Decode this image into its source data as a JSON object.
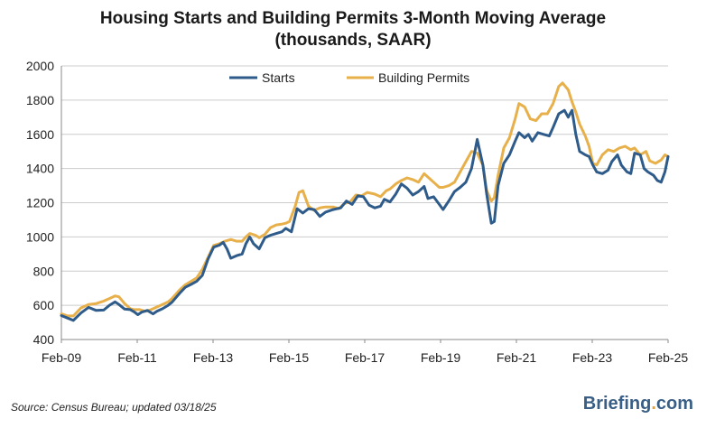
{
  "title_line1": "Housing Starts and Building Permits 3-Month Moving Average",
  "title_line2": "(thousands, SAAR)",
  "source": "Source:  Census Bureau;  updated  03/18/25",
  "logo": {
    "name": "Briefing",
    "dot": ".",
    "tld": "com"
  },
  "colors": {
    "starts": "#2e5b8a",
    "permits": "#e8b04a",
    "grid": "#cccccc"
  },
  "chart_data": {
    "type": "line",
    "title": "Housing Starts and Building Permits 3-Month Moving Average (thousands, SAAR)",
    "xlabel": "",
    "ylabel": "",
    "xlim": [
      2009.083,
      2025.083
    ],
    "ylim": [
      400,
      2000
    ],
    "yticks": [
      400,
      600,
      800,
      1000,
      1200,
      1400,
      1600,
      1800,
      2000
    ],
    "xticks": [
      {
        "value": 2009.083,
        "label": "Feb-09"
      },
      {
        "value": 2011.083,
        "label": "Feb-11"
      },
      {
        "value": 2013.083,
        "label": "Feb-13"
      },
      {
        "value": 2015.083,
        "label": "Feb-15"
      },
      {
        "value": 2017.083,
        "label": "Feb-17"
      },
      {
        "value": 2019.083,
        "label": "Feb-19"
      },
      {
        "value": 2021.083,
        "label": "Feb-21"
      },
      {
        "value": 2023.083,
        "label": "Feb-23"
      },
      {
        "value": 2025.083,
        "label": "Feb-25"
      }
    ],
    "grid": true,
    "legend": "top-center",
    "series": [
      {
        "name": "Starts",
        "color": "#2e5b8a",
        "points": [
          [
            2009.083,
            540
          ],
          [
            2009.25,
            525
          ],
          [
            2009.4,
            512
          ],
          [
            2009.6,
            555
          ],
          [
            2009.8,
            588
          ],
          [
            2010.0,
            570
          ],
          [
            2010.2,
            572
          ],
          [
            2010.35,
            600
          ],
          [
            2010.5,
            620
          ],
          [
            2010.6,
            605
          ],
          [
            2010.75,
            578
          ],
          [
            2010.9,
            575
          ],
          [
            2011.0,
            562
          ],
          [
            2011.1,
            545
          ],
          [
            2011.2,
            560
          ],
          [
            2011.35,
            570
          ],
          [
            2011.5,
            550
          ],
          [
            2011.6,
            565
          ],
          [
            2011.75,
            580
          ],
          [
            2011.9,
            600
          ],
          [
            2012.0,
            618
          ],
          [
            2012.2,
            670
          ],
          [
            2012.35,
            705
          ],
          [
            2012.5,
            722
          ],
          [
            2012.65,
            740
          ],
          [
            2012.8,
            775
          ],
          [
            2012.95,
            870
          ],
          [
            2013.1,
            940
          ],
          [
            2013.25,
            952
          ],
          [
            2013.35,
            968
          ],
          [
            2013.45,
            930
          ],
          [
            2013.55,
            875
          ],
          [
            2013.7,
            890
          ],
          [
            2013.85,
            900
          ],
          [
            2013.95,
            960
          ],
          [
            2014.05,
            1000
          ],
          [
            2014.15,
            960
          ],
          [
            2014.3,
            930
          ],
          [
            2014.45,
            995
          ],
          [
            2014.6,
            1010
          ],
          [
            2014.75,
            1020
          ],
          [
            2014.9,
            1030
          ],
          [
            2015.0,
            1050
          ],
          [
            2015.15,
            1030
          ],
          [
            2015.3,
            1165
          ],
          [
            2015.45,
            1140
          ],
          [
            2015.6,
            1165
          ],
          [
            2015.75,
            1160
          ],
          [
            2015.9,
            1120
          ],
          [
            2016.05,
            1145
          ],
          [
            2016.25,
            1160
          ],
          [
            2016.45,
            1170
          ],
          [
            2016.6,
            1210
          ],
          [
            2016.75,
            1190
          ],
          [
            2016.9,
            1240
          ],
          [
            2017.05,
            1235
          ],
          [
            2017.2,
            1185
          ],
          [
            2017.35,
            1170
          ],
          [
            2017.5,
            1180
          ],
          [
            2017.6,
            1220
          ],
          [
            2017.75,
            1205
          ],
          [
            2017.9,
            1250
          ],
          [
            2018.05,
            1310
          ],
          [
            2018.2,
            1285
          ],
          [
            2018.35,
            1245
          ],
          [
            2018.5,
            1265
          ],
          [
            2018.65,
            1295
          ],
          [
            2018.75,
            1225
          ],
          [
            2018.9,
            1235
          ],
          [
            2019.05,
            1190
          ],
          [
            2019.15,
            1160
          ],
          [
            2019.3,
            1210
          ],
          [
            2019.45,
            1265
          ],
          [
            2019.6,
            1290
          ],
          [
            2019.75,
            1320
          ],
          [
            2019.9,
            1400
          ],
          [
            2020.05,
            1570
          ],
          [
            2020.2,
            1420
          ],
          [
            2020.3,
            1250
          ],
          [
            2020.42,
            1080
          ],
          [
            2020.5,
            1090
          ],
          [
            2020.6,
            1300
          ],
          [
            2020.75,
            1430
          ],
          [
            2020.9,
            1480
          ],
          [
            2021.05,
            1560
          ],
          [
            2021.15,
            1610
          ],
          [
            2021.3,
            1580
          ],
          [
            2021.4,
            1600
          ],
          [
            2021.5,
            1560
          ],
          [
            2021.65,
            1610
          ],
          [
            2021.8,
            1600
          ],
          [
            2021.95,
            1590
          ],
          [
            2022.05,
            1640
          ],
          [
            2022.2,
            1720
          ],
          [
            2022.35,
            1740
          ],
          [
            2022.45,
            1700
          ],
          [
            2022.55,
            1740
          ],
          [
            2022.65,
            1600
          ],
          [
            2022.75,
            1500
          ],
          [
            2022.9,
            1480
          ],
          [
            2023.0,
            1470
          ],
          [
            2023.1,
            1420
          ],
          [
            2023.2,
            1380
          ],
          [
            2023.35,
            1370
          ],
          [
            2023.5,
            1390
          ],
          [
            2023.6,
            1440
          ],
          [
            2023.75,
            1480
          ],
          [
            2023.85,
            1420
          ],
          [
            2024.0,
            1380
          ],
          [
            2024.1,
            1370
          ],
          [
            2024.2,
            1490
          ],
          [
            2024.35,
            1480
          ],
          [
            2024.45,
            1400
          ],
          [
            2024.55,
            1380
          ],
          [
            2024.7,
            1360
          ],
          [
            2024.8,
            1330
          ],
          [
            2024.9,
            1320
          ],
          [
            2025.0,
            1380
          ],
          [
            2025.083,
            1470
          ]
        ]
      },
      {
        "name": "Building Permits",
        "color": "#e8b04a",
        "points": [
          [
            2009.083,
            550
          ],
          [
            2009.25,
            538
          ],
          [
            2009.4,
            538
          ],
          [
            2009.6,
            585
          ],
          [
            2009.8,
            605
          ],
          [
            2010.0,
            610
          ],
          [
            2010.2,
            625
          ],
          [
            2010.35,
            640
          ],
          [
            2010.5,
            655
          ],
          [
            2010.6,
            650
          ],
          [
            2010.75,
            610
          ],
          [
            2010.9,
            580
          ],
          [
            2011.0,
            575
          ],
          [
            2011.15,
            575
          ],
          [
            2011.3,
            565
          ],
          [
            2011.45,
            575
          ],
          [
            2011.6,
            590
          ],
          [
            2011.75,
            605
          ],
          [
            2011.9,
            620
          ],
          [
            2012.0,
            640
          ],
          [
            2012.2,
            690
          ],
          [
            2012.35,
            720
          ],
          [
            2012.5,
            740
          ],
          [
            2012.65,
            760
          ],
          [
            2012.8,
            810
          ],
          [
            2012.95,
            880
          ],
          [
            2013.1,
            950
          ],
          [
            2013.25,
            960
          ],
          [
            2013.4,
            975
          ],
          [
            2013.55,
            985
          ],
          [
            2013.7,
            975
          ],
          [
            2013.85,
            975
          ],
          [
            2013.95,
            1000
          ],
          [
            2014.05,
            1020
          ],
          [
            2014.2,
            1010
          ],
          [
            2014.3,
            995
          ],
          [
            2014.45,
            1015
          ],
          [
            2014.6,
            1055
          ],
          [
            2014.75,
            1070
          ],
          [
            2014.9,
            1075
          ],
          [
            2015.0,
            1080
          ],
          [
            2015.1,
            1090
          ],
          [
            2015.25,
            1180
          ],
          [
            2015.35,
            1260
          ],
          [
            2015.45,
            1270
          ],
          [
            2015.6,
            1180
          ],
          [
            2015.75,
            1155
          ],
          [
            2015.9,
            1170
          ],
          [
            2016.05,
            1175
          ],
          [
            2016.25,
            1175
          ],
          [
            2016.4,
            1165
          ],
          [
            2016.55,
            1195
          ],
          [
            2016.7,
            1205
          ],
          [
            2016.85,
            1245
          ],
          [
            2017.0,
            1240
          ],
          [
            2017.15,
            1260
          ],
          [
            2017.35,
            1250
          ],
          [
            2017.5,
            1235
          ],
          [
            2017.65,
            1270
          ],
          [
            2017.75,
            1280
          ],
          [
            2017.9,
            1310
          ],
          [
            2018.05,
            1330
          ],
          [
            2018.2,
            1345
          ],
          [
            2018.35,
            1335
          ],
          [
            2018.5,
            1320
          ],
          [
            2018.65,
            1370
          ],
          [
            2018.75,
            1350
          ],
          [
            2018.9,
            1320
          ],
          [
            2019.05,
            1290
          ],
          [
            2019.15,
            1290
          ],
          [
            2019.3,
            1300
          ],
          [
            2019.45,
            1320
          ],
          [
            2019.6,
            1380
          ],
          [
            2019.75,
            1440
          ],
          [
            2019.9,
            1500
          ],
          [
            2020.05,
            1490
          ],
          [
            2020.2,
            1420
          ],
          [
            2020.3,
            1270
          ],
          [
            2020.42,
            1210
          ],
          [
            2020.5,
            1230
          ],
          [
            2020.6,
            1360
          ],
          [
            2020.75,
            1520
          ],
          [
            2020.9,
            1580
          ],
          [
            2021.05,
            1690
          ],
          [
            2021.15,
            1780
          ],
          [
            2021.3,
            1760
          ],
          [
            2021.45,
            1690
          ],
          [
            2021.6,
            1680
          ],
          [
            2021.75,
            1720
          ],
          [
            2021.9,
            1720
          ],
          [
            2022.05,
            1780
          ],
          [
            2022.2,
            1880
          ],
          [
            2022.3,
            1900
          ],
          [
            2022.45,
            1860
          ],
          [
            2022.55,
            1790
          ],
          [
            2022.65,
            1730
          ],
          [
            2022.75,
            1660
          ],
          [
            2022.9,
            1590
          ],
          [
            2023.0,
            1530
          ],
          [
            2023.1,
            1430
          ],
          [
            2023.2,
            1420
          ],
          [
            2023.35,
            1480
          ],
          [
            2023.5,
            1510
          ],
          [
            2023.65,
            1500
          ],
          [
            2023.8,
            1520
          ],
          [
            2023.95,
            1530
          ],
          [
            2024.1,
            1510
          ],
          [
            2024.2,
            1520
          ],
          [
            2024.35,
            1480
          ],
          [
            2024.5,
            1500
          ],
          [
            2024.6,
            1445
          ],
          [
            2024.75,
            1430
          ],
          [
            2024.9,
            1450
          ],
          [
            2025.0,
            1480
          ],
          [
            2025.083,
            1470
          ]
        ]
      }
    ]
  }
}
